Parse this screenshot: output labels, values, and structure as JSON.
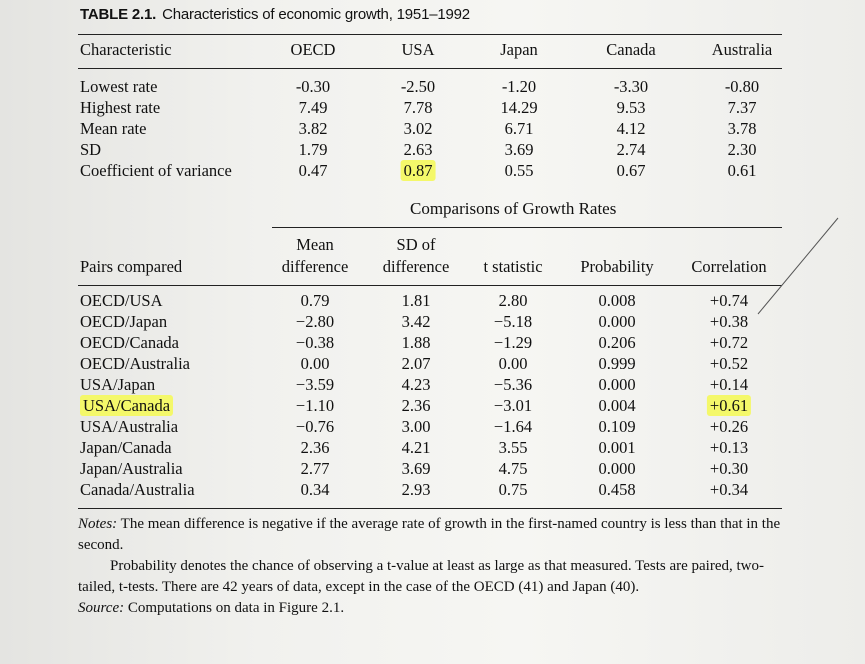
{
  "table1": {
    "caption_label": "TABLE 2.1.",
    "caption_text": "Characteristics of economic growth, 1951–1992",
    "columns": [
      "Characteristic",
      "OECD",
      "USA",
      "Japan",
      "Canada",
      "Australia"
    ],
    "rows": [
      {
        "label": "Lowest rate",
        "values": [
          "-0.30",
          "-2.50",
          "-1.20",
          "-3.30",
          "-0.80"
        ]
      },
      {
        "label": "Highest rate",
        "values": [
          "7.49",
          "7.78",
          "14.29",
          "9.53",
          "7.37"
        ]
      },
      {
        "label": "Mean rate",
        "values": [
          "3.82",
          "3.02",
          "6.71",
          "4.12",
          "3.78"
        ]
      },
      {
        "label": "SD",
        "values": [
          "1.79",
          "2.63",
          "3.69",
          "2.74",
          "2.30"
        ]
      },
      {
        "label": "Coefficient of variance",
        "values": [
          "0.47",
          "0.87",
          "0.55",
          "0.67",
          "0.61"
        ]
      }
    ],
    "highlight_color": "#f4f86a"
  },
  "table2": {
    "subtitle": "Comparisons of Growth Rates",
    "header_top": [
      "",
      "Mean",
      "SD of",
      "",
      "",
      ""
    ],
    "header_bottom": [
      "Pairs compared",
      "difference",
      "difference",
      "t statistic",
      "Probability",
      "Correlation"
    ],
    "rows": [
      {
        "label": "OECD/USA",
        "values": [
          "0.79",
          "1.81",
          "2.80",
          "0.008",
          "+0.74"
        ]
      },
      {
        "label": "OECD/Japan",
        "values": [
          "−2.80",
          "3.42",
          "−5.18",
          "0.000",
          "+0.38"
        ]
      },
      {
        "label": "OECD/Canada",
        "values": [
          "−0.38",
          "1.88",
          "−1.29",
          "0.206",
          "+0.72"
        ]
      },
      {
        "label": "OECD/Australia",
        "values": [
          "0.00",
          "2.07",
          "0.00",
          "0.999",
          "+0.52"
        ]
      },
      {
        "label": "USA/Japan",
        "values": [
          "−3.59",
          "4.23",
          "−5.36",
          "0.000",
          "+0.14"
        ]
      },
      {
        "label": "USA/Canada",
        "values": [
          "−1.10",
          "2.36",
          "−3.01",
          "0.004",
          "+0.61"
        ]
      },
      {
        "label": "USA/Australia",
        "values": [
          "−0.76",
          "3.00",
          "−1.64",
          "0.109",
          "+0.26"
        ]
      },
      {
        "label": "Japan/Canada",
        "values": [
          "2.36",
          "4.21",
          "3.55",
          "0.001",
          "+0.13"
        ]
      },
      {
        "label": "Japan/Australia",
        "values": [
          "2.77",
          "3.69",
          "4.75",
          "0.000",
          "+0.30"
        ]
      },
      {
        "label": "Canada/Australia",
        "values": [
          "0.34",
          "2.93",
          "0.75",
          "0.458",
          "+0.34"
        ]
      }
    ]
  },
  "notes": {
    "notes_label": "Notes:",
    "notes_text": "The mean difference is negative if the average rate of growth in the first-named country is less than that in the second.",
    "probability_text": "Probability denotes the chance of observing a t-value at least as large as that measured. Tests are paired, two-tailed, t-tests. There are 42 years of data, except in the case of the OECD (41) and Japan (40).",
    "source_label": "Source:",
    "source_text": "Computations on data in Figure 2.1."
  }
}
